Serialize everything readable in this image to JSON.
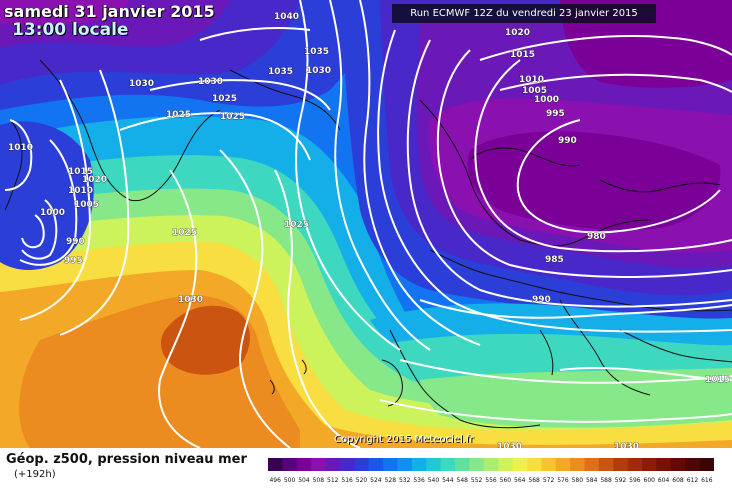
{
  "header": {
    "date_title": "samedi 31 janvier 2015",
    "time_title": "13:00 locale",
    "run_info": "Run ECMWF 12Z du vendredi 23 janvier 2015"
  },
  "copyright": "Copyright 2015 Meteociel.fr",
  "legend": {
    "title": "Géop. z500, pression niveau mer",
    "subtitle": "(+192h)",
    "scale_values": [
      "496",
      "500",
      "504",
      "508",
      "512",
      "516",
      "520",
      "524",
      "528",
      "532",
      "536",
      "540",
      "544",
      "548",
      "552",
      "556",
      "560",
      "564",
      "568",
      "572",
      "576",
      "580",
      "584",
      "588",
      "592",
      "596",
      "600",
      "604",
      "608",
      "612",
      "616"
    ],
    "scale_colors": [
      "#3a0052",
      "#5a007a",
      "#7a0098",
      "#8a10b0",
      "#6a18b8",
      "#4828c8",
      "#2c3ed8",
      "#1a58e8",
      "#1274f0",
      "#1290f0",
      "#14aee8",
      "#20c8d8",
      "#3ed8c0",
      "#60e0a0",
      "#86e888",
      "#aaee70",
      "#ccf25c",
      "#eef050",
      "#f8de40",
      "#f8c430",
      "#f4a828",
      "#ec8c20",
      "#de7018",
      "#ca5410",
      "#b43c0c",
      "#a02a0a",
      "#8c1c08",
      "#781006",
      "#640a06",
      "#500606",
      "#3c0404"
    ]
  },
  "pressure_labels": [
    {
      "text": "1040"
    },
    {
      "text": "1020"
    },
    {
      "text": "1015"
    },
    {
      "text": "1035"
    },
    {
      "text": "1030"
    },
    {
      "text": "1035"
    },
    {
      "text": "1030"
    },
    {
      "text": "1030"
    },
    {
      "text": "1025"
    },
    {
      "text": "1025"
    },
    {
      "text": "1025"
    },
    {
      "text": "1010"
    },
    {
      "text": "1005"
    },
    {
      "text": "1000"
    },
    {
      "text": "995"
    },
    {
      "text": "990"
    },
    {
      "text": "1010"
    },
    {
      "text": "1015"
    },
    {
      "text": "1020"
    },
    {
      "text": "1010"
    },
    {
      "text": "1005"
    },
    {
      "text": "1000"
    },
    {
      "text": "995"
    },
    {
      "text": "990"
    },
    {
      "text": "1025"
    },
    {
      "text": "1025"
    },
    {
      "text": "1030"
    },
    {
      "text": "980"
    },
    {
      "text": "985"
    },
    {
      "text": "990"
    },
    {
      "text": "1015"
    },
    {
      "text": "1030"
    },
    {
      "text": "1030"
    }
  ],
  "colors": {
    "isobar": "#ffffff",
    "coastline": "#111111"
  }
}
